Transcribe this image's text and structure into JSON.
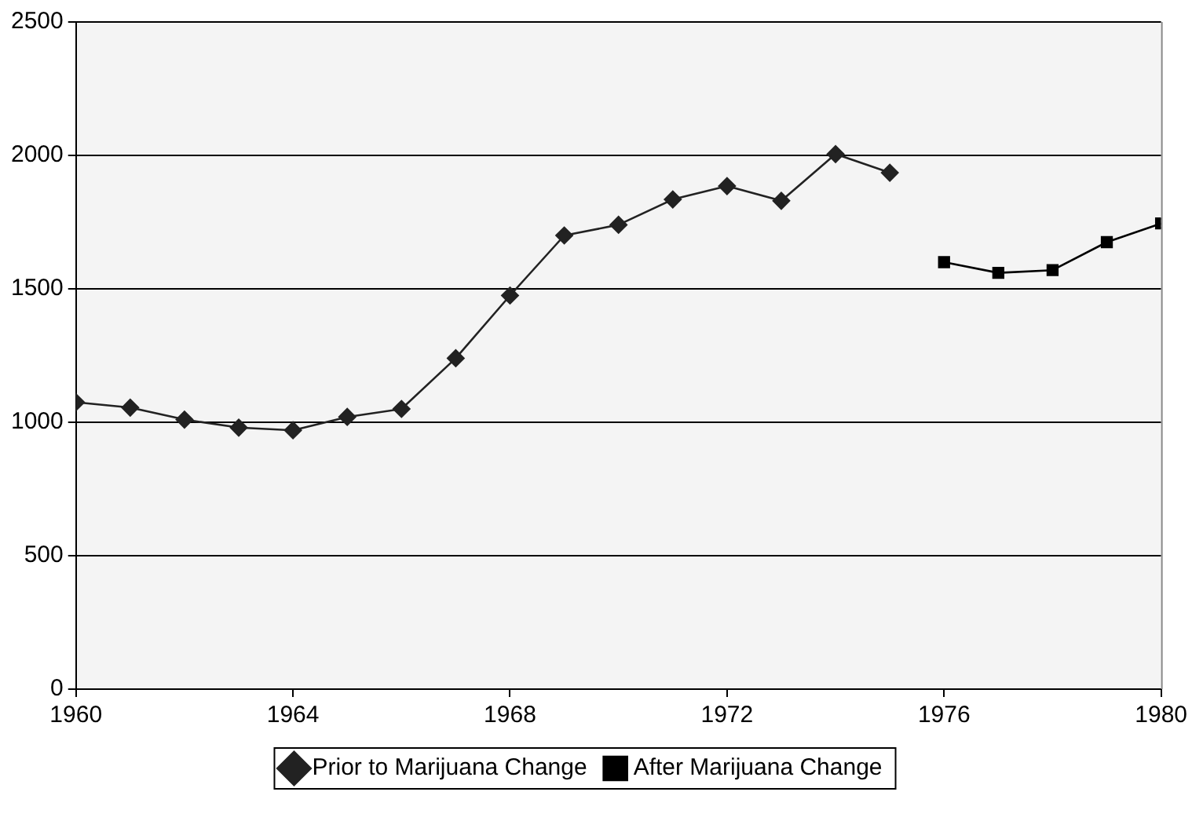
{
  "chart_data": {
    "type": "line",
    "xlim": [
      1960,
      1980
    ],
    "xticks": [
      1960,
      1964,
      1968,
      1972,
      1976,
      1980
    ],
    "ylim": [
      0,
      2500
    ],
    "yticks": [
      0,
      500,
      1000,
      1500,
      2000,
      2500
    ],
    "grid": "y",
    "legend": "bottom",
    "series": [
      {
        "name": "Prior to Marijuana Change",
        "color": "#222222",
        "marker": "diamond",
        "x": [
          1960,
          1961,
          1962,
          1963,
          1964,
          1965,
          1966,
          1967,
          1968,
          1969,
          1970,
          1971,
          1972,
          1973,
          1974,
          1975
        ],
        "values": [
          1075,
          1055,
          1010,
          980,
          970,
          1020,
          1050,
          1240,
          1475,
          1700,
          1740,
          1835,
          1885,
          1830,
          2005,
          1935
        ]
      },
      {
        "name": "After Marijuana Change",
        "color": "#000000",
        "marker": "square",
        "x": [
          1976,
          1977,
          1978,
          1979,
          1980
        ],
        "values": [
          1600,
          1560,
          1570,
          1675,
          1745
        ]
      }
    ]
  }
}
